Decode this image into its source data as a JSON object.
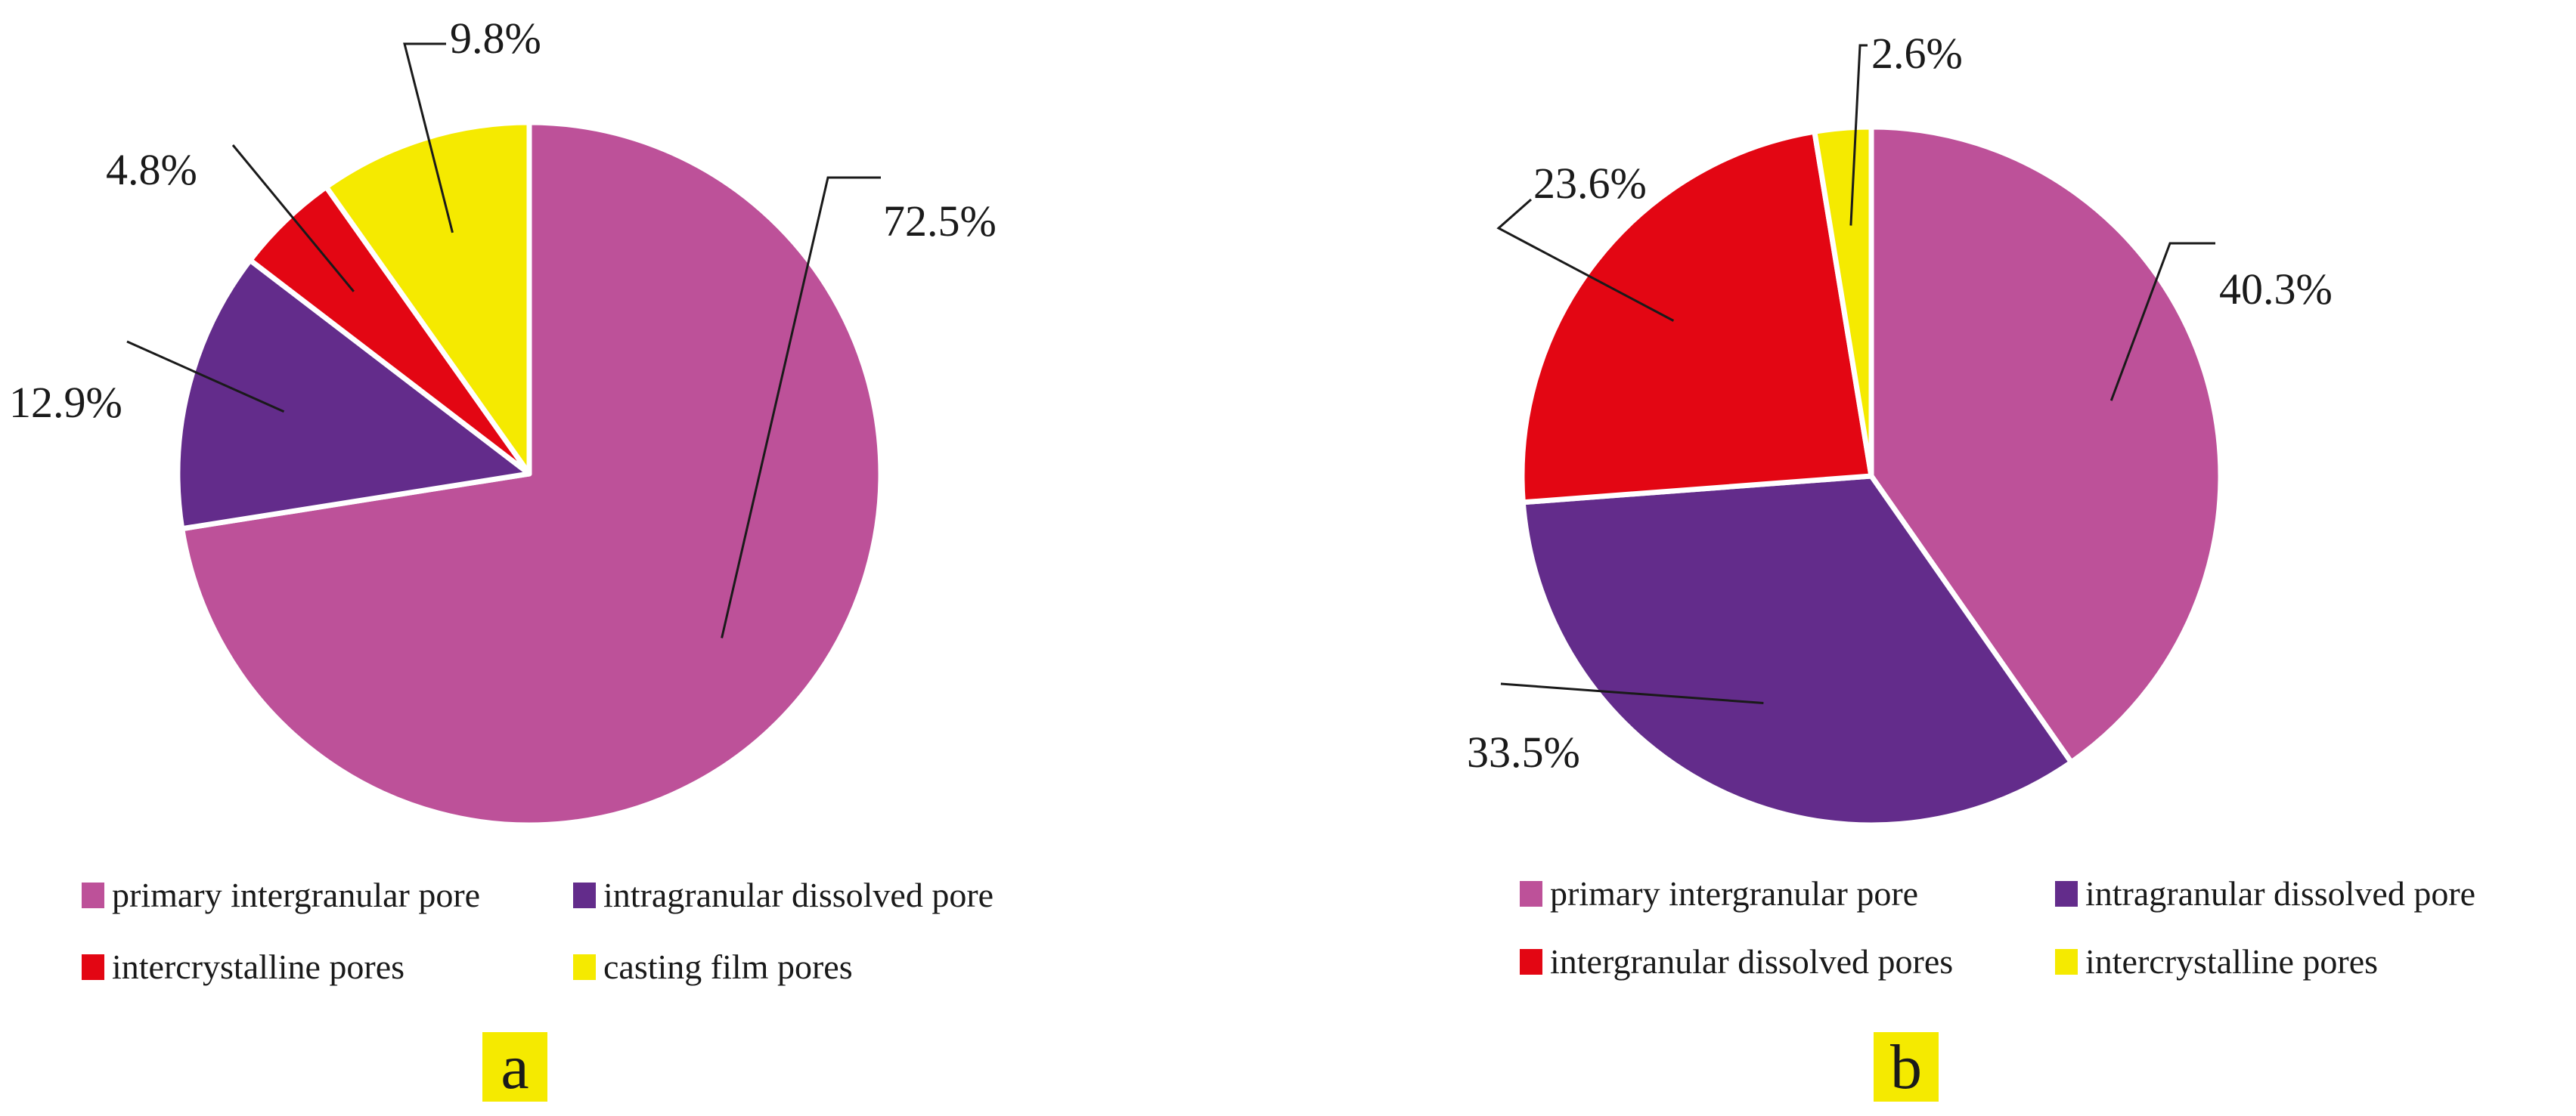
{
  "chart_data": [
    {
      "type": "pie",
      "panel_label": "a",
      "slice_colors": [
        "#bd5199",
        "#632c8b",
        "#e30613",
        "#f5ea00"
      ],
      "slices": [
        {
          "name": "primary intergranular pore",
          "value": 72.5,
          "label": "72.5%"
        },
        {
          "name": "intragranular dissolved pore",
          "value": 12.9,
          "label": "12.9%"
        },
        {
          "name": "intercrystalline pores",
          "value": 4.8,
          "label": "4.8%"
        },
        {
          "name": "casting film pores",
          "value": 9.8,
          "label": "9.8%"
        }
      ],
      "legend": [
        "primary intergranular pore",
        "intragranular dissolved pore",
        "intercrystalline pores",
        "casting film pores"
      ],
      "start": "12 o'clock, clockwise",
      "legend_position": "bottom"
    },
    {
      "type": "pie",
      "panel_label": "b",
      "slice_colors": [
        "#bd5199",
        "#632c8b",
        "#e30613",
        "#f5ea00"
      ],
      "slices": [
        {
          "name": "primary intergranular pore",
          "value": 40.3,
          "label": "40.3%"
        },
        {
          "name": "intragranular dissolved pore",
          "value": 33.5,
          "label": "33.5%"
        },
        {
          "name": "intergranular dissolved pores",
          "value": 23.6,
          "label": "23.6%"
        },
        {
          "name": "intercrystalline pores",
          "value": 2.6,
          "label": "2.6%"
        }
      ],
      "legend": [
        "primary intergranular pore",
        "intragranular dissolved pore",
        "intergranular dissolved pores",
        "intercrystalline pores"
      ],
      "start": "12 o'clock, clockwise",
      "legend_position": "bottom"
    }
  ]
}
